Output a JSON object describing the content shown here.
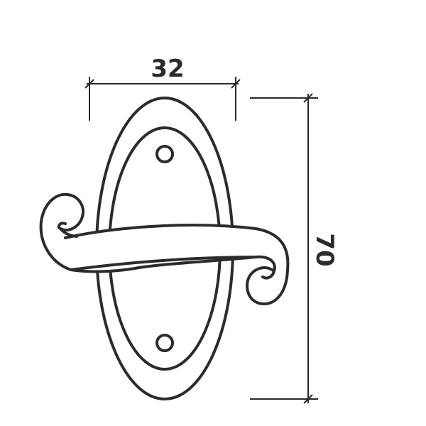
{
  "drawing": {
    "width_label": "32",
    "height_label": "70",
    "stroke_color": "#2b2b2b",
    "background": "#ffffff"
  }
}
